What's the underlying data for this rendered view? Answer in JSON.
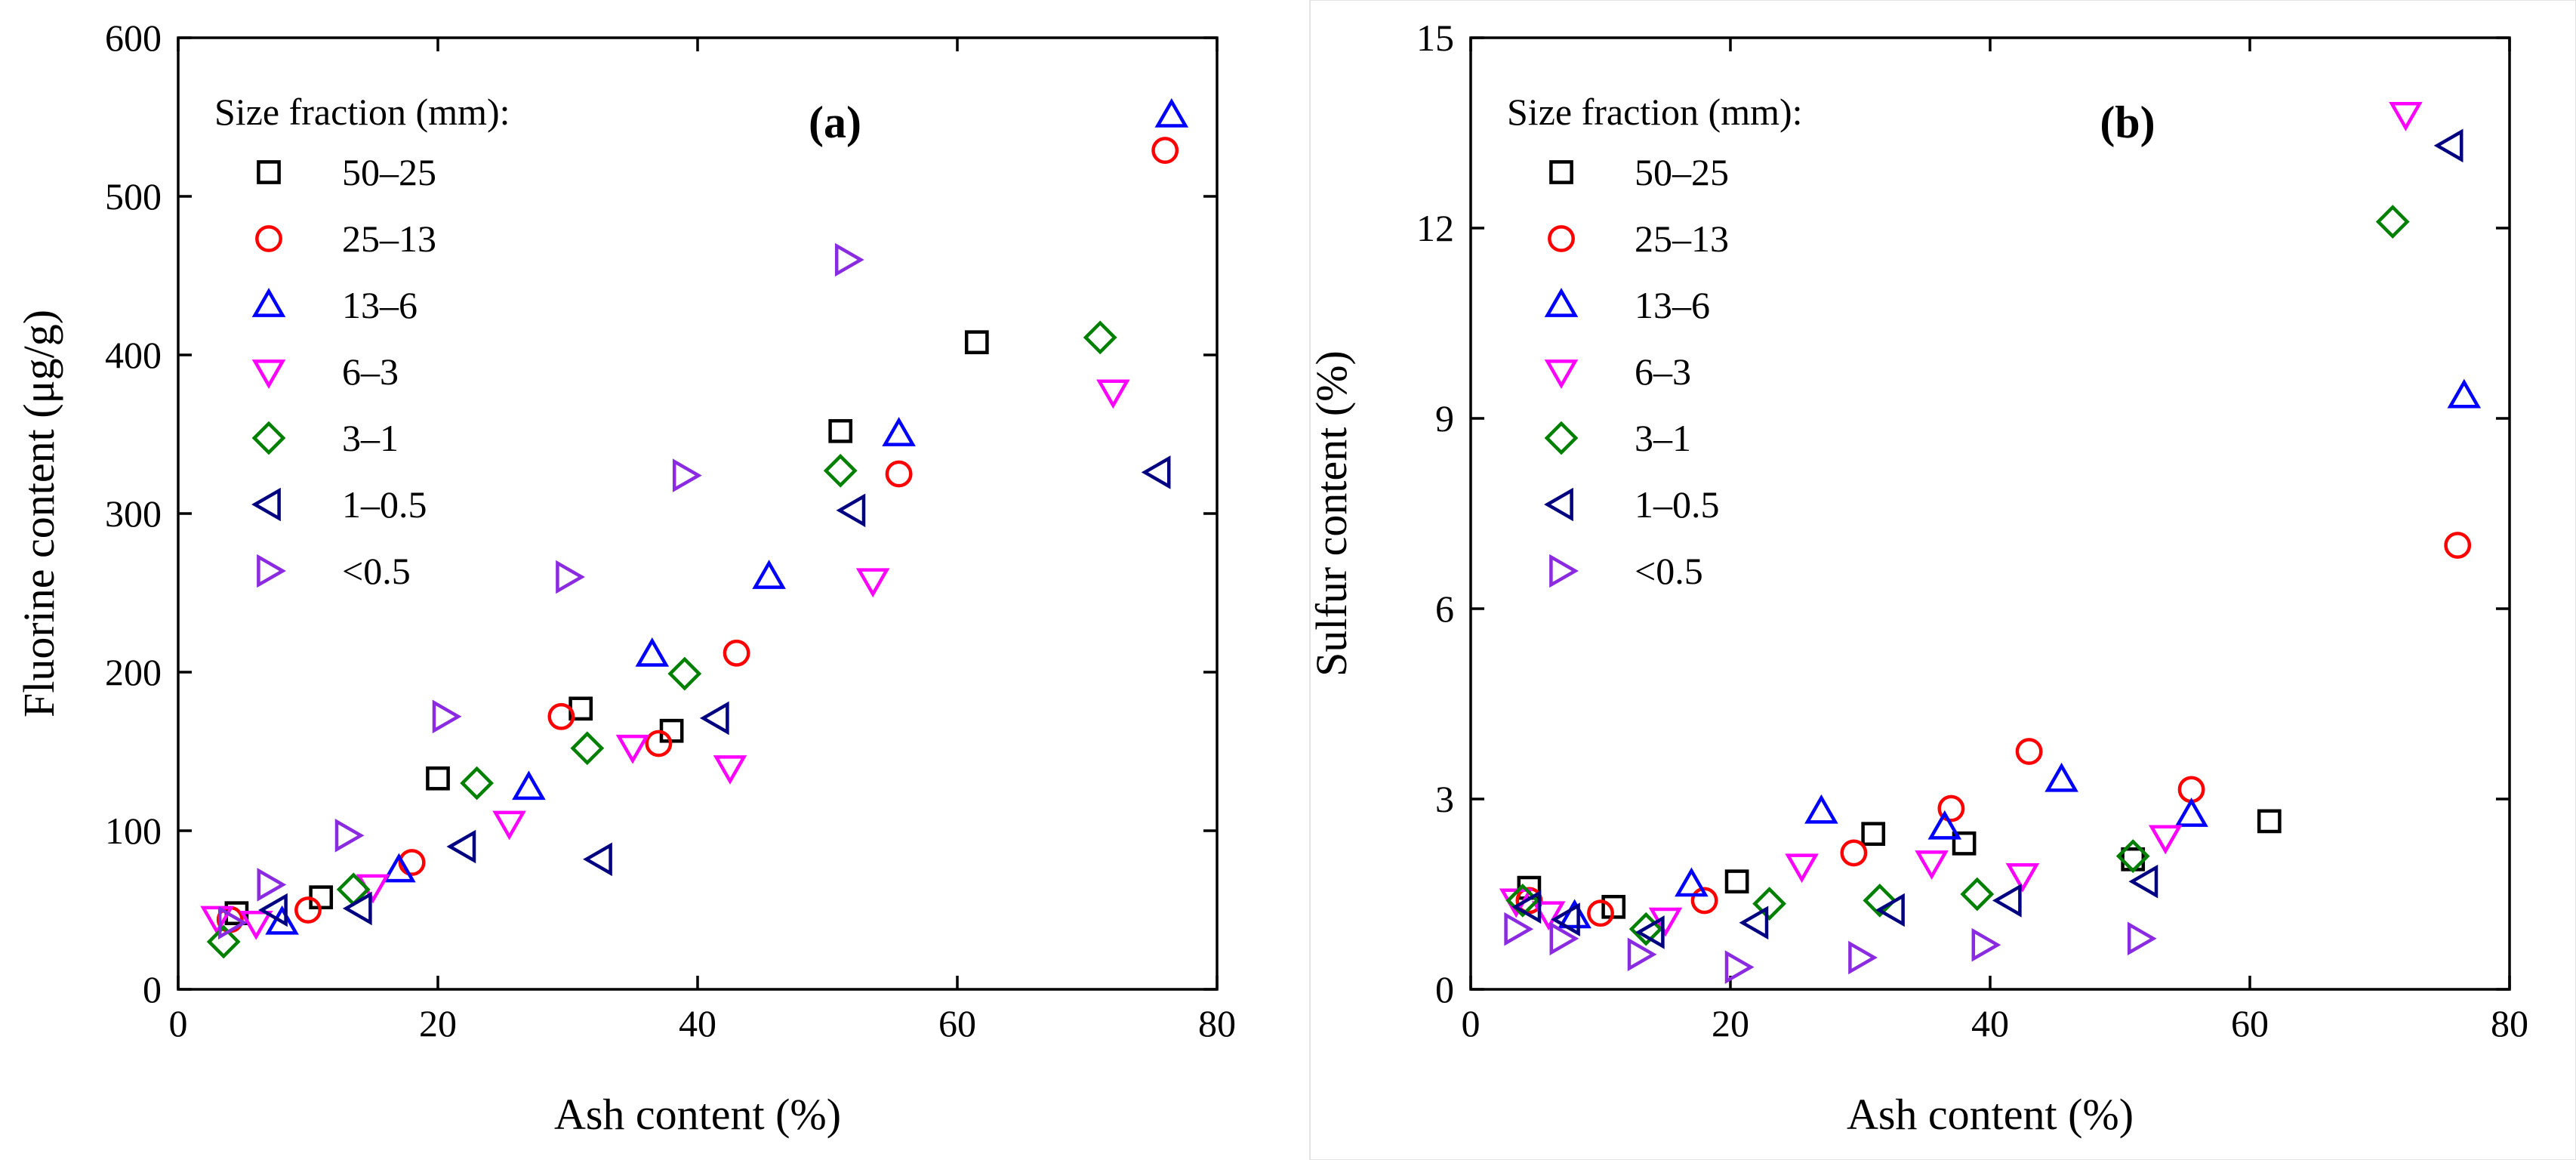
{
  "chart_data": [
    {
      "type": "scatter",
      "panel_label": "(a)",
      "xlabel": "Ash content (%)",
      "ylabel": "Fluorine content (μg/g)",
      "xlim": [
        0,
        80
      ],
      "ylim": [
        0,
        600
      ],
      "x_ticks": [
        "0",
        "20",
        "40",
        "60",
        "80"
      ],
      "y_ticks": [
        "0",
        "100",
        "200",
        "300",
        "400",
        "500",
        "600"
      ],
      "legend_title": "Size fraction (mm):",
      "legend_position": "top-left",
      "series": [
        {
          "name": "50–25",
          "marker": "square",
          "color": "#000000",
          "points": [
            [
              4.5,
              48
            ],
            [
              11,
              58
            ],
            [
              20,
              133
            ],
            [
              31,
              177
            ],
            [
              38,
              163
            ],
            [
              51,
              352
            ],
            [
              61.5,
              408
            ]
          ]
        },
        {
          "name": "25–13",
          "marker": "circle",
          "color": "#ff0000",
          "points": [
            [
              4,
              44
            ],
            [
              10,
              50
            ],
            [
              18,
              80
            ],
            [
              29.5,
              172
            ],
            [
              37,
              155
            ],
            [
              43,
              212
            ],
            [
              55.5,
              325
            ],
            [
              76,
              529
            ]
          ]
        },
        {
          "name": "13–6",
          "marker": "triangle-up",
          "color": "#0000ff",
          "points": [
            [
              8,
              42
            ],
            [
              17,
              75
            ],
            [
              27,
              127
            ],
            [
              36.5,
              211
            ],
            [
              45.5,
              260
            ],
            [
              55.5,
              350
            ],
            [
              76.5,
              551
            ]
          ]
        },
        {
          "name": "6–3",
          "marker": "triangle-down",
          "color": "#ff00ff",
          "points": [
            [
              3,
              45
            ],
            [
              6,
              42
            ],
            [
              15,
              65
            ],
            [
              25.5,
              105
            ],
            [
              35,
              153
            ],
            [
              42.5,
              140
            ],
            [
              53.5,
              258
            ],
            [
              72,
              377
            ]
          ]
        },
        {
          "name": "3–1",
          "marker": "diamond",
          "color": "#008000",
          "points": [
            [
              3.5,
              30
            ],
            [
              13.5,
              63
            ],
            [
              23,
              130
            ],
            [
              31.5,
              152
            ],
            [
              39,
              199
            ],
            [
              51,
              327
            ],
            [
              71,
              411
            ]
          ]
        },
        {
          "name": "1–0.5",
          "marker": "triangle-left",
          "color": "#000080",
          "points": [
            [
              7.5,
              50
            ],
            [
              14,
              51
            ],
            [
              22,
              90
            ],
            [
              32.5,
              82
            ],
            [
              41.5,
              171
            ],
            [
              52,
              302
            ],
            [
              75.5,
              326
            ]
          ]
        },
        {
          "name": "<0.5",
          "marker": "triangle-right",
          "color": "#8a2be2",
          "points": [
            [
              4,
              42
            ],
            [
              7,
              66
            ],
            [
              13,
              97
            ],
            [
              20.5,
              172
            ],
            [
              30,
              260
            ],
            [
              39,
              324
            ],
            [
              51.5,
              460
            ]
          ]
        }
      ]
    },
    {
      "type": "scatter",
      "panel_label": "(b)",
      "xlabel": "Ash content (%)",
      "ylabel": "Sulfur content (%)",
      "xlim": [
        0,
        80
      ],
      "ylim": [
        0,
        15
      ],
      "x_ticks": [
        "0",
        "20",
        "40",
        "60",
        "80"
      ],
      "y_ticks": [
        "0",
        "3",
        "6",
        "9",
        "12",
        "15"
      ],
      "legend_title": "Size fraction (mm):",
      "legend_position": "top-left",
      "series": [
        {
          "name": "50–25",
          "marker": "square",
          "color": "#000000",
          "points": [
            [
              4.5,
              1.6
            ],
            [
              11,
              1.3
            ],
            [
              20.5,
              1.7
            ],
            [
              31,
              2.45
            ],
            [
              38,
              2.3
            ],
            [
              51,
              2.05
            ],
            [
              61.5,
              2.65
            ]
          ]
        },
        {
          "name": "25–13",
          "marker": "circle",
          "color": "#ff0000",
          "points": [
            [
              4.5,
              1.4
            ],
            [
              10,
              1.2
            ],
            [
              18,
              1.4
            ],
            [
              29.5,
              2.15
            ],
            [
              37,
              2.85
            ],
            [
              43,
              3.75
            ],
            [
              55.5,
              3.15
            ],
            [
              76,
              7.0
            ]
          ]
        },
        {
          "name": "13–6",
          "marker": "triangle-up",
          "color": "#0000ff",
          "points": [
            [
              8,
              1.15
            ],
            [
              17,
              1.65
            ],
            [
              27,
              2.8
            ],
            [
              36.5,
              2.55
            ],
            [
              45.5,
              3.3
            ],
            [
              55.5,
              2.75
            ],
            [
              76.5,
              9.35
            ]
          ]
        },
        {
          "name": "6–3",
          "marker": "triangle-down",
          "color": "#ff00ff",
          "points": [
            [
              3.5,
              1.4
            ],
            [
              6,
              1.2
            ],
            [
              15,
              1.1
            ],
            [
              25.5,
              1.95
            ],
            [
              35.5,
              2.0
            ],
            [
              42.5,
              1.8
            ],
            [
              53.5,
              2.4
            ],
            [
              72,
              13.8
            ]
          ]
        },
        {
          "name": "3–1",
          "marker": "diamond",
          "color": "#008000",
          "points": [
            [
              4,
              1.4
            ],
            [
              13.5,
              0.95
            ],
            [
              23,
              1.35
            ],
            [
              31.5,
              1.4
            ],
            [
              39,
              1.5
            ],
            [
              51,
              2.1
            ],
            [
              71,
              12.1
            ]
          ]
        },
        {
          "name": "1–0.5",
          "marker": "triangle-left",
          "color": "#000080",
          "points": [
            [
              4.5,
              1.3
            ],
            [
              7.5,
              1.1
            ],
            [
              14,
              0.9
            ],
            [
              22,
              1.05
            ],
            [
              32.5,
              1.25
            ],
            [
              41.5,
              1.4
            ],
            [
              52,
              1.7
            ],
            [
              75.5,
              13.3
            ]
          ]
        },
        {
          "name": "<0.5",
          "marker": "triangle-right",
          "color": "#8a2be2",
          "points": [
            [
              3.5,
              0.95
            ],
            [
              7,
              0.8
            ],
            [
              13,
              0.55
            ],
            [
              20.5,
              0.35
            ],
            [
              30,
              0.5
            ],
            [
              39.5,
              0.7
            ],
            [
              51.5,
              0.8
            ]
          ]
        }
      ]
    }
  ]
}
